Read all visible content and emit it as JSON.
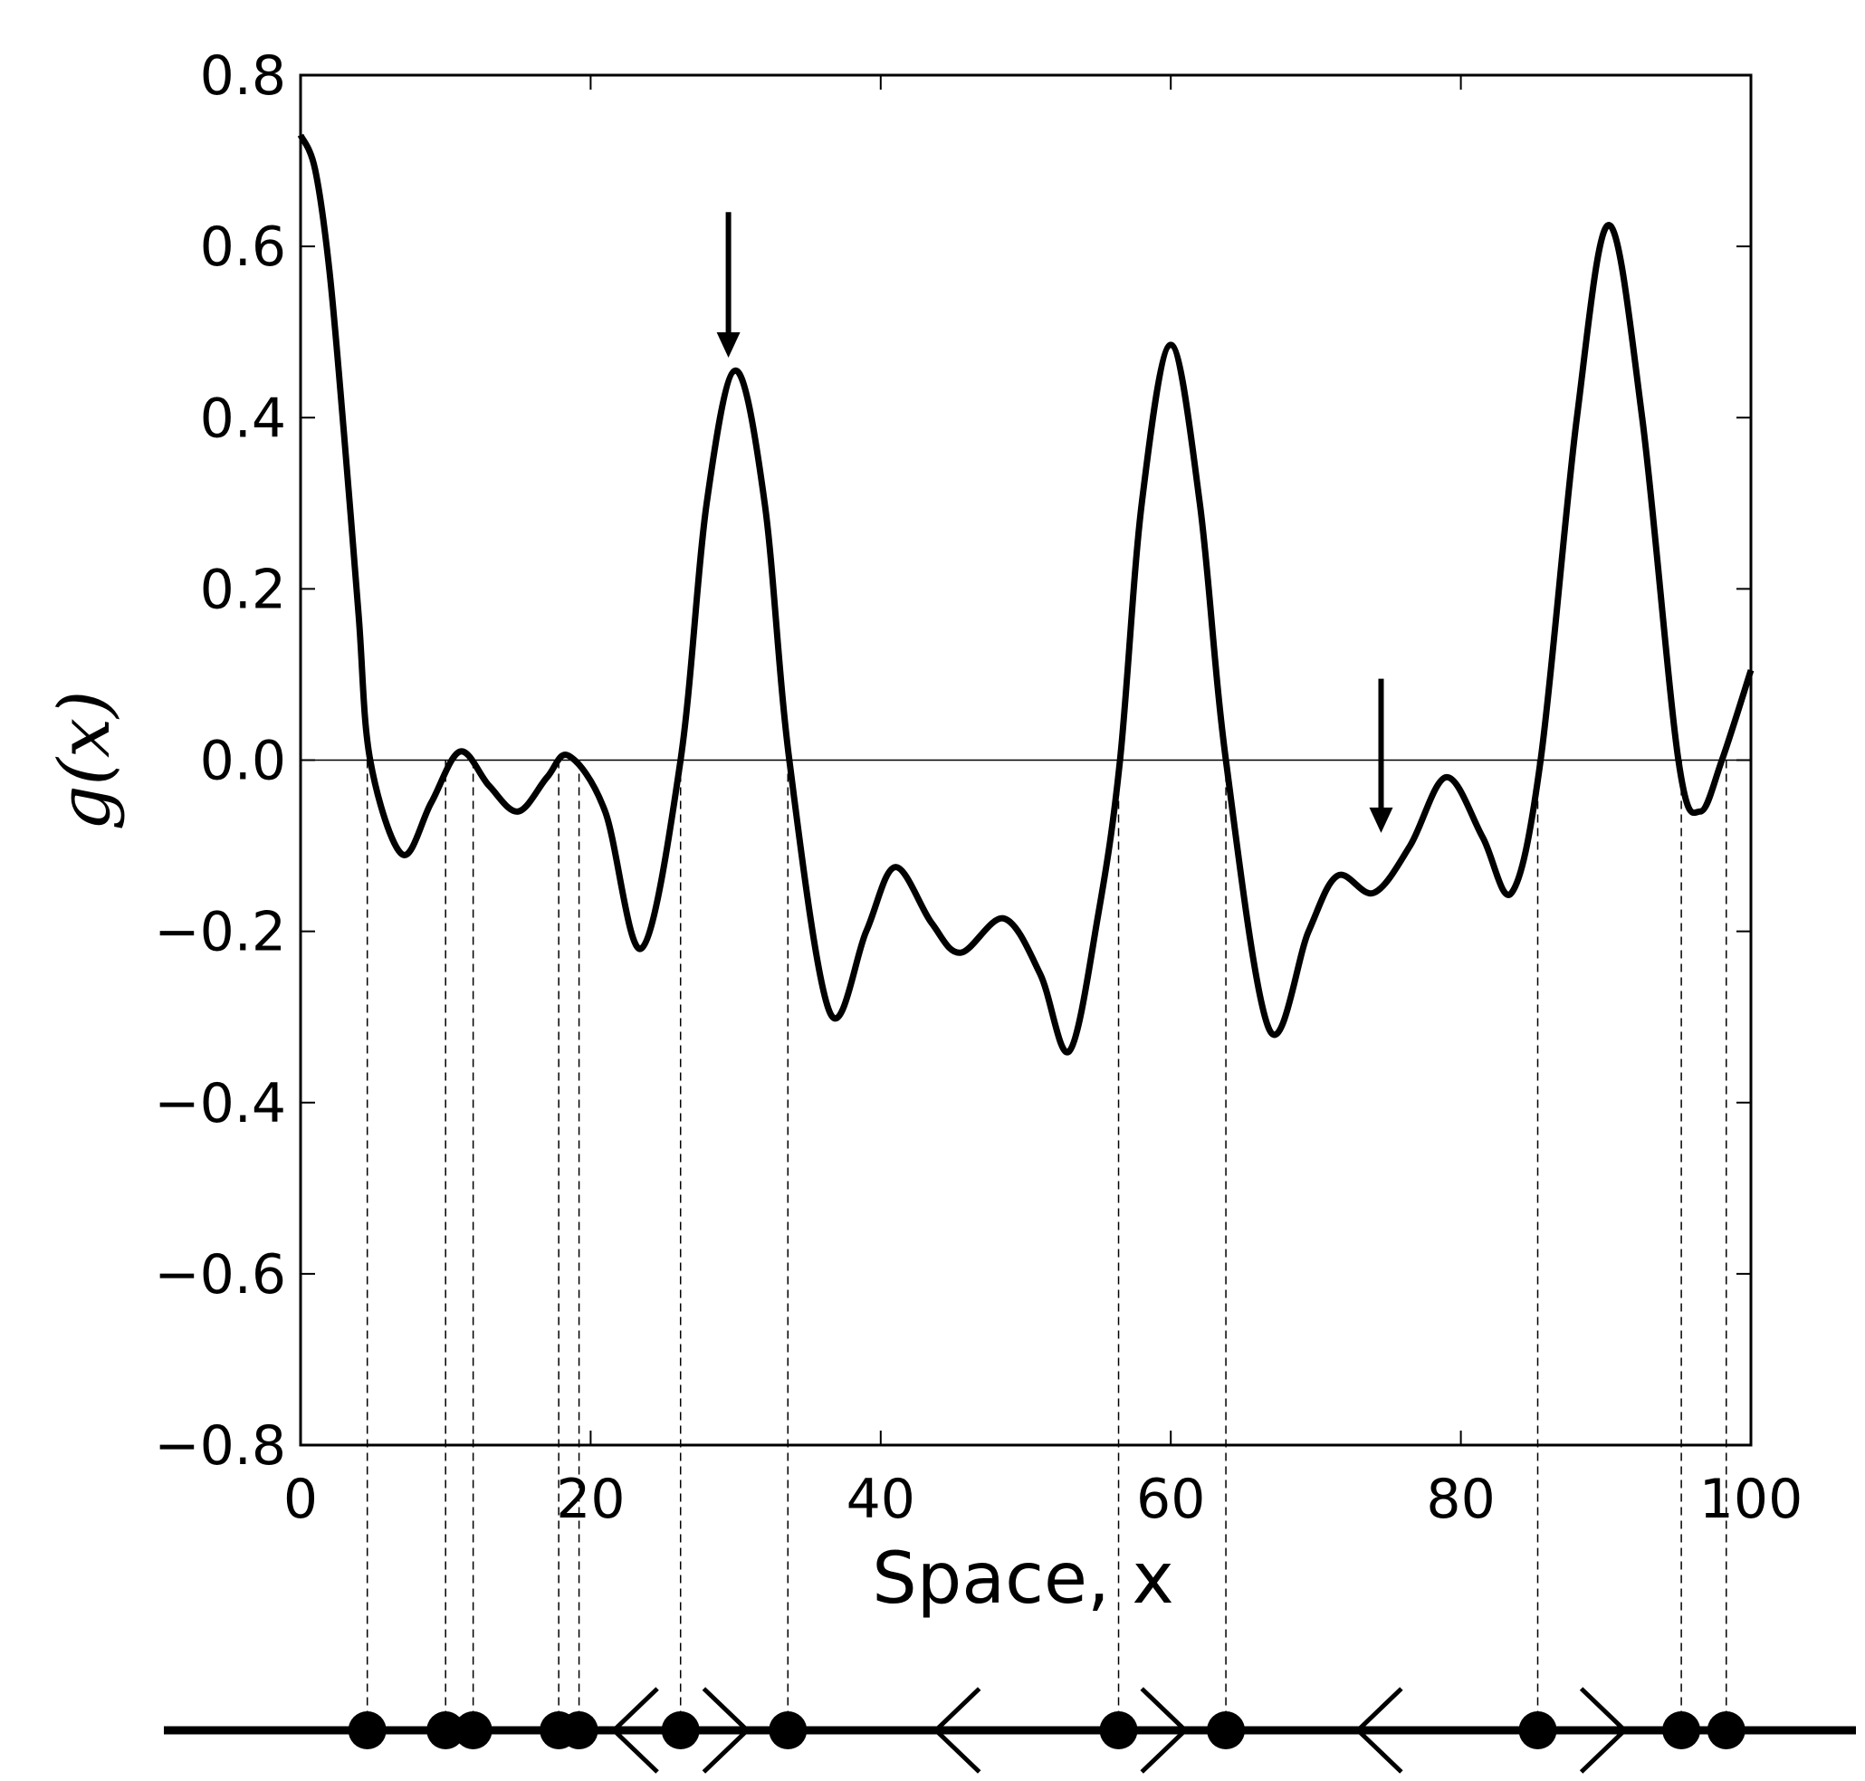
{
  "chart_data": {
    "type": "line",
    "xlabel": "Space, x",
    "ylabel": "g(x)",
    "x": [
      0,
      1,
      2,
      3,
      4,
      4.8,
      7,
      9,
      11,
      13,
      15,
      17,
      18.5,
      21,
      23.5,
      26.2,
      28,
      30,
      32,
      33.7,
      36.5,
      39,
      41,
      43.5,
      45.5,
      48.5,
      51,
      53,
      55,
      56.5,
      58,
      60,
      62,
      63.8,
      66.8,
      69.5,
      71.5,
      74,
      76.5,
      79,
      81.5,
      83.5,
      85.5,
      88,
      90.2,
      92.5,
      95,
      96.5,
      98,
      100
    ],
    "series": [
      {
        "color": "#000000",
        "values": [
          0.73,
          0.69,
          0.57,
          0.38,
          0.17,
          0.0,
          -0.11,
          -0.05,
          0.01,
          -0.03,
          -0.06,
          -0.02,
          0.005,
          -0.06,
          -0.22,
          0.0,
          0.3,
          0.455,
          0.3,
          0.0,
          -0.295,
          -0.2,
          -0.125,
          -0.19,
          -0.225,
          -0.185,
          -0.25,
          -0.34,
          -0.18,
          0.0,
          0.3,
          0.485,
          0.3,
          0.0,
          -0.315,
          -0.2,
          -0.135,
          -0.155,
          -0.1,
          -0.02,
          -0.09,
          -0.155,
          0.0,
          0.4,
          0.625,
          0.4,
          0.0,
          -0.06,
          0.0,
          0.105
        ]
      }
    ],
    "xlim": [
      0,
      100
    ],
    "ylim": [
      -0.8,
      0.8
    ],
    "xticks": [
      0,
      20,
      40,
      60,
      80,
      100
    ],
    "yticks": [
      {
        "value": -0.8,
        "label": "−0.8"
      },
      {
        "value": -0.6,
        "label": "−0.6"
      },
      {
        "value": -0.4,
        "label": "−0.4"
      },
      {
        "value": -0.2,
        "label": "−0.2"
      },
      {
        "value": 0,
        "label": "0.0"
      },
      0.2,
      0.4,
      0.6,
      0.8
    ],
    "zero_line": true,
    "fixed_points": [
      4.6,
      10.0,
      11.9,
      17.8,
      19.2,
      26.2,
      33.6,
      56.4,
      63.8,
      85.3,
      95.2,
      98.3
    ],
    "flow_left": [
      23.1,
      45.3,
      74.4
    ],
    "flow_right": [
      29.3,
      59.5,
      89.8
    ],
    "annotation_arrows": [
      {
        "x": 29.5,
        "y_start": 0.64,
        "y_end": 0.47
      },
      {
        "x": 74.5,
        "y_start": 0.095,
        "y_end": -0.085
      }
    ]
  }
}
